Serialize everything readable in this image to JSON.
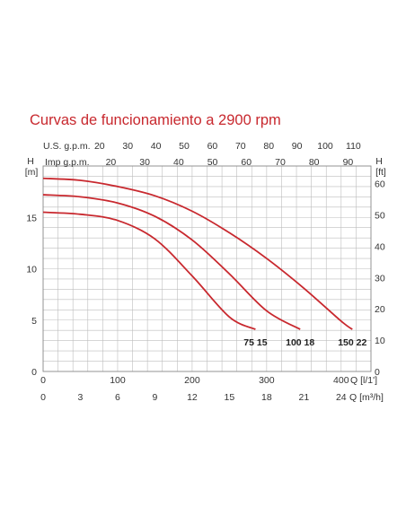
{
  "chart_data": {
    "type": "line",
    "title": "Curvas de funcionamiento a 2900 rpm",
    "y_left": {
      "label": "H",
      "unit": "[m]",
      "ticks": [
        "0",
        "5",
        "10",
        "15"
      ],
      "range": [
        0,
        20
      ]
    },
    "y_right": {
      "label": "H",
      "unit": "[ft]",
      "ticks": [
        "0",
        "10",
        "20",
        "30",
        "40",
        "50",
        "60"
      ]
    },
    "x_top_us": {
      "label": "U.S. g.p.m.",
      "ticks": [
        "20",
        "30",
        "40",
        "50",
        "60",
        "70",
        "80",
        "90",
        "100",
        "110"
      ]
    },
    "x_top_imp": {
      "label": "Imp g.p.m.",
      "ticks": [
        "20",
        "30",
        "40",
        "50",
        "60",
        "70",
        "80",
        "90"
      ]
    },
    "x_lpm": {
      "unit": "Q [l/1']",
      "ticks": [
        "0",
        "100",
        "200",
        "300",
        "400"
      ],
      "range": [
        0,
        440
      ]
    },
    "x_m3h": {
      "unit": "Q [m³/h]",
      "ticks": [
        "0",
        "3",
        "6",
        "9",
        "12",
        "15",
        "18",
        "21",
        "24"
      ]
    },
    "grid": true,
    "series": [
      {
        "name": "75 15",
        "x": [
          0,
          50,
          100,
          150,
          200,
          250,
          285
        ],
        "y": [
          15.5,
          15.3,
          14.7,
          12.9,
          9.3,
          5.3,
          4.1
        ]
      },
      {
        "name": "100 18",
        "x": [
          0,
          50,
          100,
          150,
          200,
          250,
          300,
          345
        ],
        "y": [
          17.2,
          17.0,
          16.4,
          15.1,
          12.8,
          9.5,
          5.9,
          4.1
        ]
      },
      {
        "name": "150 22",
        "x": [
          0,
          50,
          100,
          150,
          200,
          250,
          300,
          350,
          400,
          415
        ],
        "y": [
          18.8,
          18.6,
          18.0,
          17.1,
          15.6,
          13.5,
          11.0,
          8.1,
          4.9,
          4.1
        ]
      }
    ]
  }
}
